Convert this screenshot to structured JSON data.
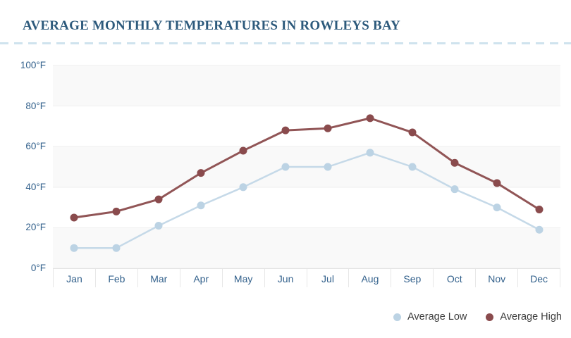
{
  "header": {
    "title": "AVERAGE MONTHLY TEMPERATURES IN ROWLEYS BAY"
  },
  "colors": {
    "title_text": "#2d5a7c",
    "axis_label_text": "#33618c",
    "divider_dash": "#cfe3ee",
    "band_fill": "#f9f9f9",
    "band_edge": "#efefef",
    "month_strip_border": "#e7e7e7",
    "low_line": "#c5d9e8",
    "low_dot": "#bcd3e4",
    "high_line": "#915556",
    "high_dot": "#8a4b4d",
    "legend_text": "#3d3d3d"
  },
  "y_axis": {
    "unit": "°F",
    "tick_labels_top_to_bottom": [
      "100°F",
      "80°F",
      "60°F",
      "40°F",
      "20°F",
      "0°F"
    ],
    "tick_values_top_to_bottom": [
      100,
      80,
      60,
      40,
      20,
      0
    ]
  },
  "chart_data": {
    "type": "line",
    "title": "AVERAGE MONTHLY TEMPERATURES IN ROWLEYS BAY",
    "categories": [
      "Jan",
      "Feb",
      "Mar",
      "Apr",
      "May",
      "Jun",
      "Jul",
      "Aug",
      "Sep",
      "Oct",
      "Nov",
      "Dec"
    ],
    "series": [
      {
        "name": "Average Low",
        "values": [
          10,
          10,
          21,
          31,
          40,
          50,
          50,
          57,
          50,
          39,
          30,
          19
        ],
        "line_color": "#c5d9e8",
        "dot_color": "#bcd3e4"
      },
      {
        "name": "Average High",
        "values": [
          25,
          28,
          34,
          47,
          58,
          68,
          69,
          74,
          67,
          52,
          42,
          29
        ],
        "line_color": "#915556",
        "dot_color": "#8a4b4d"
      }
    ],
    "ylim": [
      0,
      100
    ],
    "y_step": 20,
    "y_unit": "°F",
    "xlabel": "",
    "ylabel": "",
    "grid": "alternating-horizontal-bands",
    "gray_bands_value_ranges": [
      [
        80,
        100
      ],
      [
        40,
        60
      ],
      [
        0,
        20
      ]
    ],
    "legend_position": "bottom-right"
  },
  "legend": {
    "items": [
      {
        "label": "Average Low",
        "color": "#bcd3e4"
      },
      {
        "label": "Average High",
        "color": "#8a4b4d"
      }
    ]
  }
}
